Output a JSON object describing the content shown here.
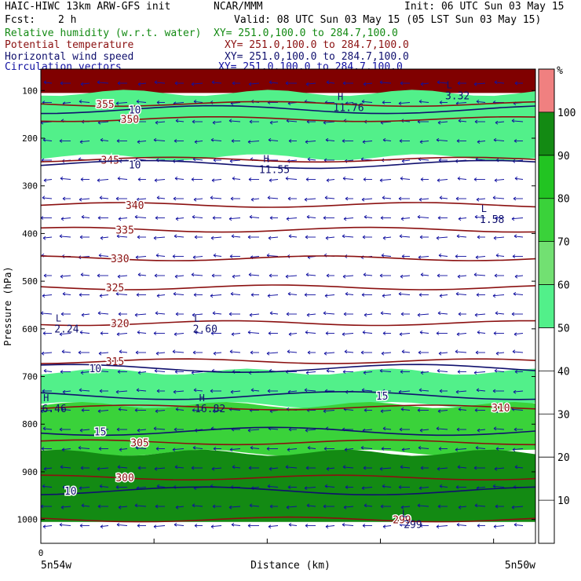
{
  "header": {
    "model": "HAIC-HIWC 13km ARW-GFS init",
    "org": "NCAR/MMM",
    "init": "Init: 06 UTC Sun 03 May 15",
    "fcst_label": "Fcst:",
    "fcst_value": "2 h",
    "valid": "Valid: 08 UTC Sun 03 May 15 (05 LST Sun 03 May 15)"
  },
  "fields": [
    {
      "name": "Relative humidity (w.r.t. water)",
      "xy": "XY= 251.0,100.0 to 284.7,100.0",
      "color": "#138a13"
    },
    {
      "name": "Potential temperature",
      "xy": "XY= 251.0,100.0 to 284.7,100.0",
      "color": "#8b1010"
    },
    {
      "name": "Horizontal wind speed",
      "xy": "XY= 251.0,100.0 to 284.7,100.0",
      "color": "#10106e"
    },
    {
      "name": "Circulation vectors",
      "xy": "XY= 251.0,100.0 to 284.7,100.0",
      "color": "#1010a0"
    }
  ],
  "chart_data": {
    "type": "contour-cross-section",
    "ylabel": "Pressure (hPa)",
    "xlabel": "Distance (km)",
    "x_start_label": "0",
    "x_left_label": "5n54w",
    "x_right_label": "5n50w",
    "y_ticks": [
      100,
      200,
      300,
      400,
      500,
      600,
      700,
      800,
      900,
      1000
    ],
    "ylim": [
      1050,
      55
    ],
    "colorbar": {
      "unit": "%",
      "ticks": [
        10,
        20,
        30,
        40,
        50,
        60,
        70,
        80,
        90,
        100
      ],
      "bins": [
        {
          "from": 0,
          "to": 50,
          "color": "#ffffff"
        },
        {
          "from": 50,
          "to": 60,
          "color": "#52f08a"
        },
        {
          "from": 60,
          "to": 70,
          "color": "#72e072"
        },
        {
          "from": 70,
          "to": 80,
          "color": "#3ad23a"
        },
        {
          "from": 80,
          "to": 90,
          "color": "#22c422"
        },
        {
          "from": 90,
          "to": 100,
          "color": "#138a13"
        },
        {
          "from": 100,
          "to": 110,
          "color": "#f08080"
        }
      ]
    },
    "rh_bands": [
      {
        "p_top": 55,
        "p_bot": 105,
        "color": "#800000"
      },
      {
        "p_top": 105,
        "p_bot": 240,
        "color": "#52f08a"
      },
      {
        "p_top": 690,
        "p_bot": 760,
        "color": "#52f08a"
      },
      {
        "p_top": 760,
        "p_bot": 860,
        "color": "#3ad23a"
      },
      {
        "p_top": 860,
        "p_bot": 1005,
        "color": "#138a13"
      }
    ],
    "theta_contours": [
      {
        "label": "355",
        "p": 128
      },
      {
        "label": "350",
        "p": 160
      },
      {
        "label": "345",
        "p": 245
      },
      {
        "label": "340",
        "p": 340
      },
      {
        "label": "335",
        "p": 392
      },
      {
        "label": "330",
        "p": 452
      },
      {
        "label": "325",
        "p": 513
      },
      {
        "label": "320",
        "p": 588
      },
      {
        "label": "315",
        "p": 668
      },
      {
        "label": "310",
        "p": 765
      },
      {
        "label": "305",
        "p": 838
      },
      {
        "label": "300",
        "p": 912
      },
      {
        "label": "299",
        "p": 1000
      }
    ],
    "wind_contours": [
      {
        "label": "10",
        "p": 140
      },
      {
        "label": "10",
        "p": 255
      },
      {
        "label": "10",
        "p": 683
      },
      {
        "label": "15",
        "p": 740
      },
      {
        "label": "15",
        "p": 815
      },
      {
        "label": "10",
        "p": 940
      }
    ],
    "extrema": [
      {
        "type": "H",
        "value": "11.76",
        "x_frac": 0.6,
        "p": 120
      },
      {
        "type": "L",
        "value": "3.32",
        "x_frac": 0.82,
        "p": 95
      },
      {
        "type": "H",
        "value": "11.55",
        "x_frac": 0.45,
        "p": 250
      },
      {
        "type": "L",
        "value": "1.58",
        "x_frac": 0.89,
        "p": 355
      },
      {
        "type": "L",
        "value": "2.24",
        "x_frac": 0.03,
        "p": 585
      },
      {
        "type": "L",
        "value": "2.60",
        "x_frac": 0.31,
        "p": 585
      },
      {
        "type": "H",
        "value": "6.46",
        "x_frac": 0.005,
        "p": 752
      },
      {
        "type": "H",
        "value": "16.82",
        "x_frac": 0.32,
        "p": 752
      },
      {
        "type": "L",
        "value": "299",
        "x_frac": 0.73,
        "p": 995
      }
    ],
    "grid": false
  }
}
